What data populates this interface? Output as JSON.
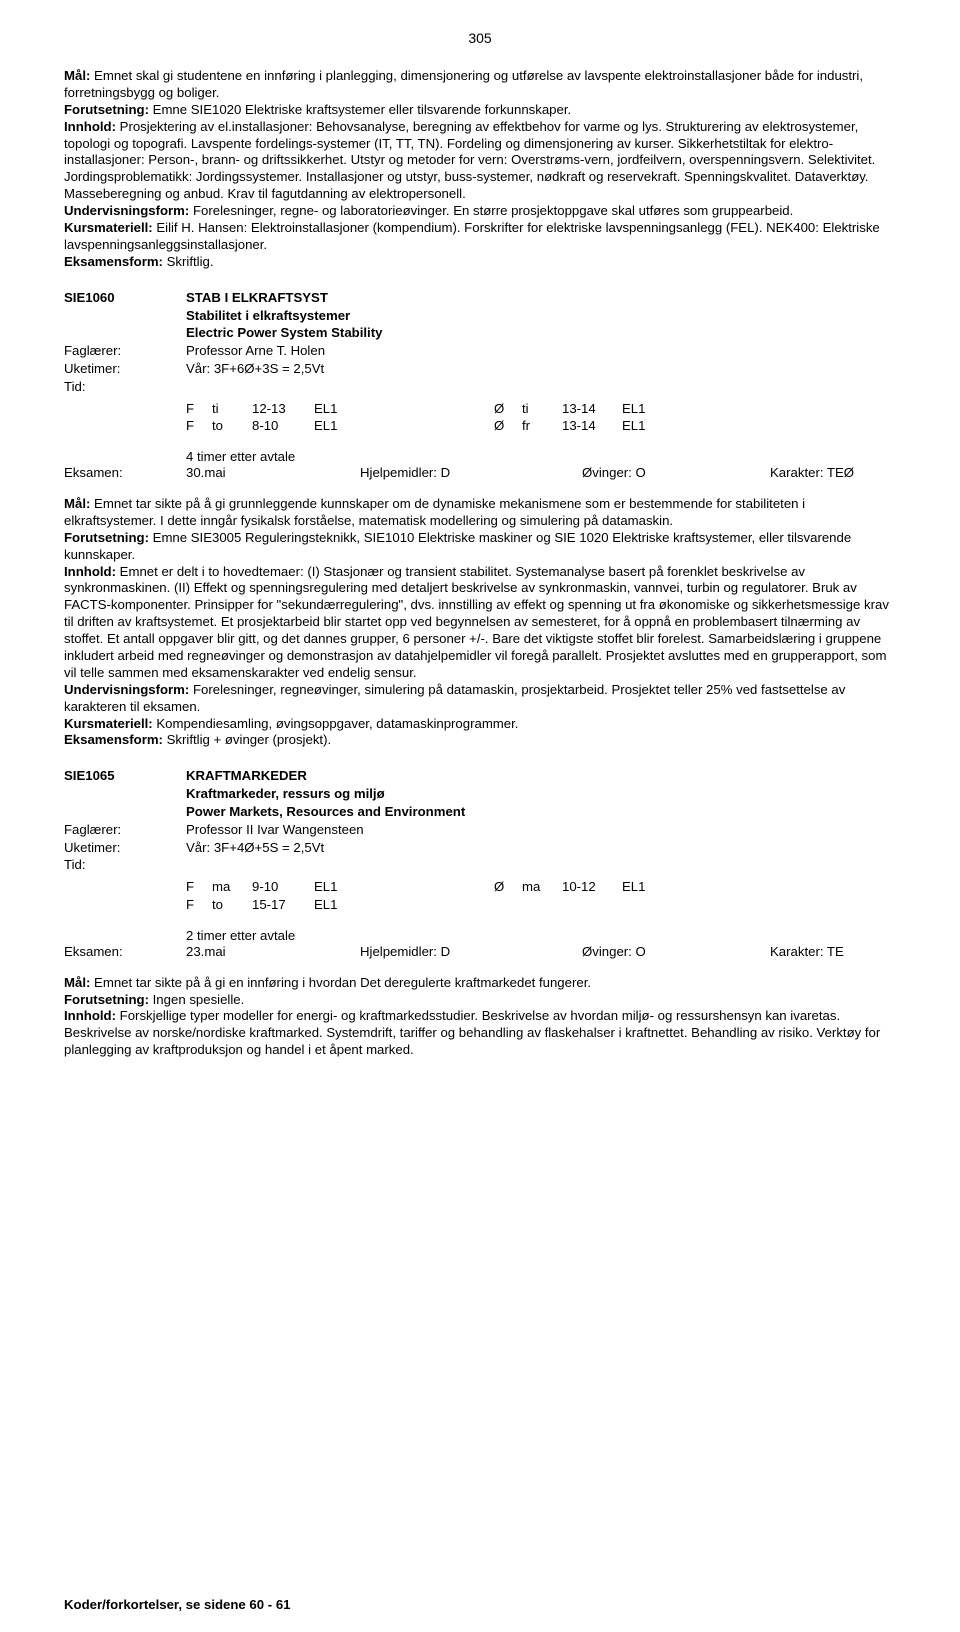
{
  "page_number": "305",
  "intro": {
    "mal_label": "Mål:",
    "mal_text": " Emnet skal gi studentene en innføring i planlegging, dimensjonering og utførelse av lavspente elektroinstallasjoner både for industri, forretningsbygg og boliger.",
    "forut_label": "Forutsetning:",
    "forut_text": " Emne SIE1020 Elektriske kraftsystemer eller tilsvarende forkunnskaper.",
    "innhold_label": "Innhold:",
    "innhold_text": " Prosjektering av el.installasjoner: Behovsanalyse, beregning av effektbehov for varme og lys. Strukturering av elektrosystemer, topologi og topografi. Lavspente fordelings-systemer (IT, TT, TN). Fordeling og dimensjonering av kurser. Sikkerhetstiltak for elektro-installasjoner: Person-, brann- og driftssikkerhet. Utstyr og metoder for vern: Overstrøms-vern, jordfeilvern, overspenningsvern. Selektivitet. Jordingsproblematikk: Jordingssystemer. Installasjoner og utstyr, buss-systemer, nødkraft og reservekraft. Spenningskvalitet. Dataverktøy. Masseberegning og anbud. Krav til fagutdanning av elektropersonell.",
    "underv_label": "Undervisningsform:",
    "underv_text": " Forelesninger, regne- og laboratorieøvinger. En større prosjektoppgave skal utføres som gruppearbeid.",
    "kurs_label": "Kursmateriell:",
    "kurs_text": " Eilif H. Hansen: Elektroinstallasjoner (kompendium). Forskrifter for elektriske lavspenningsanlegg (FEL). NEK400: Elektriske lavspenningsanleggsinstallasjoner.",
    "eks_label": "Eksamensform:",
    "eks_text": " Skriftlig."
  },
  "course1": {
    "code": "SIE1060",
    "title_caps": "STAB I ELKRAFTSYST",
    "title_no": "Stabilitet i elkraftsystemer",
    "title_en": "Electric Power System Stability",
    "faglaerer_label": "Faglærer:",
    "faglaerer": "Professor Arne T. Holen",
    "uketimer_label": "Uketimer:",
    "uketimer": "Vår: 3F+6Ø+3S = 2,5Vt",
    "tid_label": "Tid:",
    "sched": [
      {
        "a": "F",
        "b": "ti",
        "c": "12-13",
        "d": "EL1",
        "e": "Ø",
        "f": "ti",
        "g": "13-14",
        "h": "EL1"
      },
      {
        "a": "F",
        "b": "to",
        "c": "8-10",
        "d": "EL1",
        "e": "Ø",
        "f": "fr",
        "g": "13-14",
        "h": "EL1"
      }
    ],
    "after": "4 timer etter avtale",
    "exam_label": "Eksamen:",
    "exam_date": "30.mai",
    "exam_help": "Hjelpemidler: D",
    "exam_ov": "Øvinger: O",
    "exam_grade": "Karakter: TEØ",
    "mal_label": "Mål:",
    "mal_text": " Emnet tar sikte på å gi grunnleggende kunnskaper om de dynamiske mekanismene som er bestemmende for stabiliteten i elkraftsystemer. I dette inngår fysikalsk forståelse, matematisk modellering og simulering på datamaskin.",
    "forut_label": "Forutsetning:",
    "forut_text": " Emne SIE3005 Reguleringsteknikk, SIE1010 Elektriske maskiner og SIE 1020 Elektriske kraftsystemer, eller tilsvarende kunnskaper.",
    "innhold_label": "Innhold:",
    "innhold_text": " Emnet er delt i to hovedtemaer: (I) Stasjonær og transient stabilitet. Systemanalyse basert på forenklet beskrivelse av synkronmaskinen. (II) Effekt og spenningsregulering med detaljert beskrivelse av synkronmaskin, vannvei, turbin og regulatorer. Bruk av FACTS-komponenter. Prinsipper for \"sekundærregulering\", dvs. innstilling av effekt og spenning ut fra økonomiske og sikkerhetsmessige krav til driften av kraftsystemet. Et prosjektarbeid blir startet opp ved begynnelsen av semesteret, for å oppnå en problembasert tilnærming av stoffet. Et antall oppgaver blir gitt, og det dannes grupper, 6 personer +/-. Bare det viktigste stoffet blir forelest. Samarbeidslæring i gruppene inkludert arbeid med regneøvinger og demonstrasjon av datahjelpemidler vil foregå parallelt. Prosjektet avsluttes med en grupperapport, som vil telle sammen med eksamenskarakter ved endelig sensur.",
    "underv_label": "Undervisningsform:",
    "underv_text": " Forelesninger, regneøvinger, simulering på datamaskin, prosjektarbeid. Prosjektet teller 25% ved fastsettelse av karakteren til eksamen.",
    "kurs_label": "Kursmateriell:",
    "kurs_text": " Kompendiesamling, øvingsoppgaver, datamaskinprogrammer.",
    "eks_label": "Eksamensform:",
    "eks_text": " Skriftlig + øvinger (prosjekt)."
  },
  "course2": {
    "code": "SIE1065",
    "title_caps": "KRAFTMARKEDER",
    "title_no": "Kraftmarkeder, ressurs og miljø",
    "title_en": "Power Markets, Resources and Environment",
    "faglaerer_label": "Faglærer:",
    "faglaerer": "Professor II Ivar Wangensteen",
    "uketimer_label": "Uketimer:",
    "uketimer": "Vår: 3F+4Ø+5S = 2,5Vt",
    "tid_label": "Tid:",
    "sched": [
      {
        "a": "F",
        "b": "ma",
        "c": "9-10",
        "d": "EL1",
        "e": "Ø",
        "f": "ma",
        "g": "10-12",
        "h": "EL1"
      },
      {
        "a": "F",
        "b": "to",
        "c": "15-17",
        "d": "EL1",
        "e": "",
        "f": "",
        "g": "",
        "h": ""
      }
    ],
    "after": "2 timer etter avtale",
    "exam_label": "Eksamen:",
    "exam_date": "23.mai",
    "exam_help": "Hjelpemidler: D",
    "exam_ov": "Øvinger: O",
    "exam_grade": "Karakter: TE",
    "mal_label": "Mål:",
    "mal_text": " Emnet tar sikte på å gi en innføring i hvordan Det deregulerte kraftmarkedet fungerer.",
    "forut_label": "Forutsetning:",
    "forut_text": " Ingen spesielle.",
    "innhold_label": "Innhold:",
    "innhold_text": " Forskjellige typer modeller for energi- og kraftmarkedsstudier. Beskrivelse av hvordan miljø- og ressurshensyn kan ivaretas. Beskrivelse av norske/nordiske kraftmarked. Systemdrift, tariffer og behandling av flaskehalser i kraftnettet. Behandling av risiko. Verktøy for planlegging av kraftproduksjon og handel i et åpent marked."
  },
  "footer": "Koder/forkortelser, se sidene 60 - 61"
}
